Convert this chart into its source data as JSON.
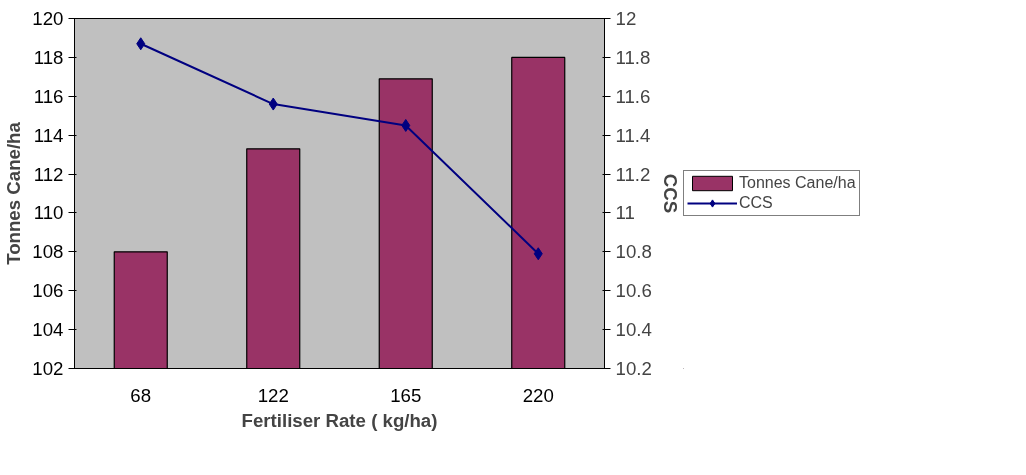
{
  "chart_data": {
    "type": "bar",
    "xlabel": "Fertiliser Rate ( kg/ha)",
    "ylabel": "Tonnes Cane/ha",
    "y2label": "CCS",
    "categories": [
      "68",
      "122",
      "165",
      "220"
    ],
    "series": [
      {
        "name": "Tonnes Cane/ha",
        "type": "bar",
        "color": "#993366",
        "values": [
          108,
          113.3,
          116.9,
          118
        ]
      },
      {
        "name": "CCS",
        "type": "line",
        "axis": "y2",
        "color": "#000080",
        "marker": "diamond",
        "values": [
          11.87,
          11.56,
          11.45,
          10.79
        ]
      }
    ],
    "ylim": [
      102,
      120
    ],
    "yticks": [
      102,
      104,
      106,
      108,
      110,
      112,
      114,
      116,
      118,
      120
    ],
    "y2lim": [
      10.2,
      12
    ],
    "y2ticks": [
      10.2,
      10.4,
      10.6,
      10.8,
      11,
      11.2,
      11.4,
      11.6,
      11.8,
      12
    ],
    "grid": false,
    "legend": "right"
  }
}
